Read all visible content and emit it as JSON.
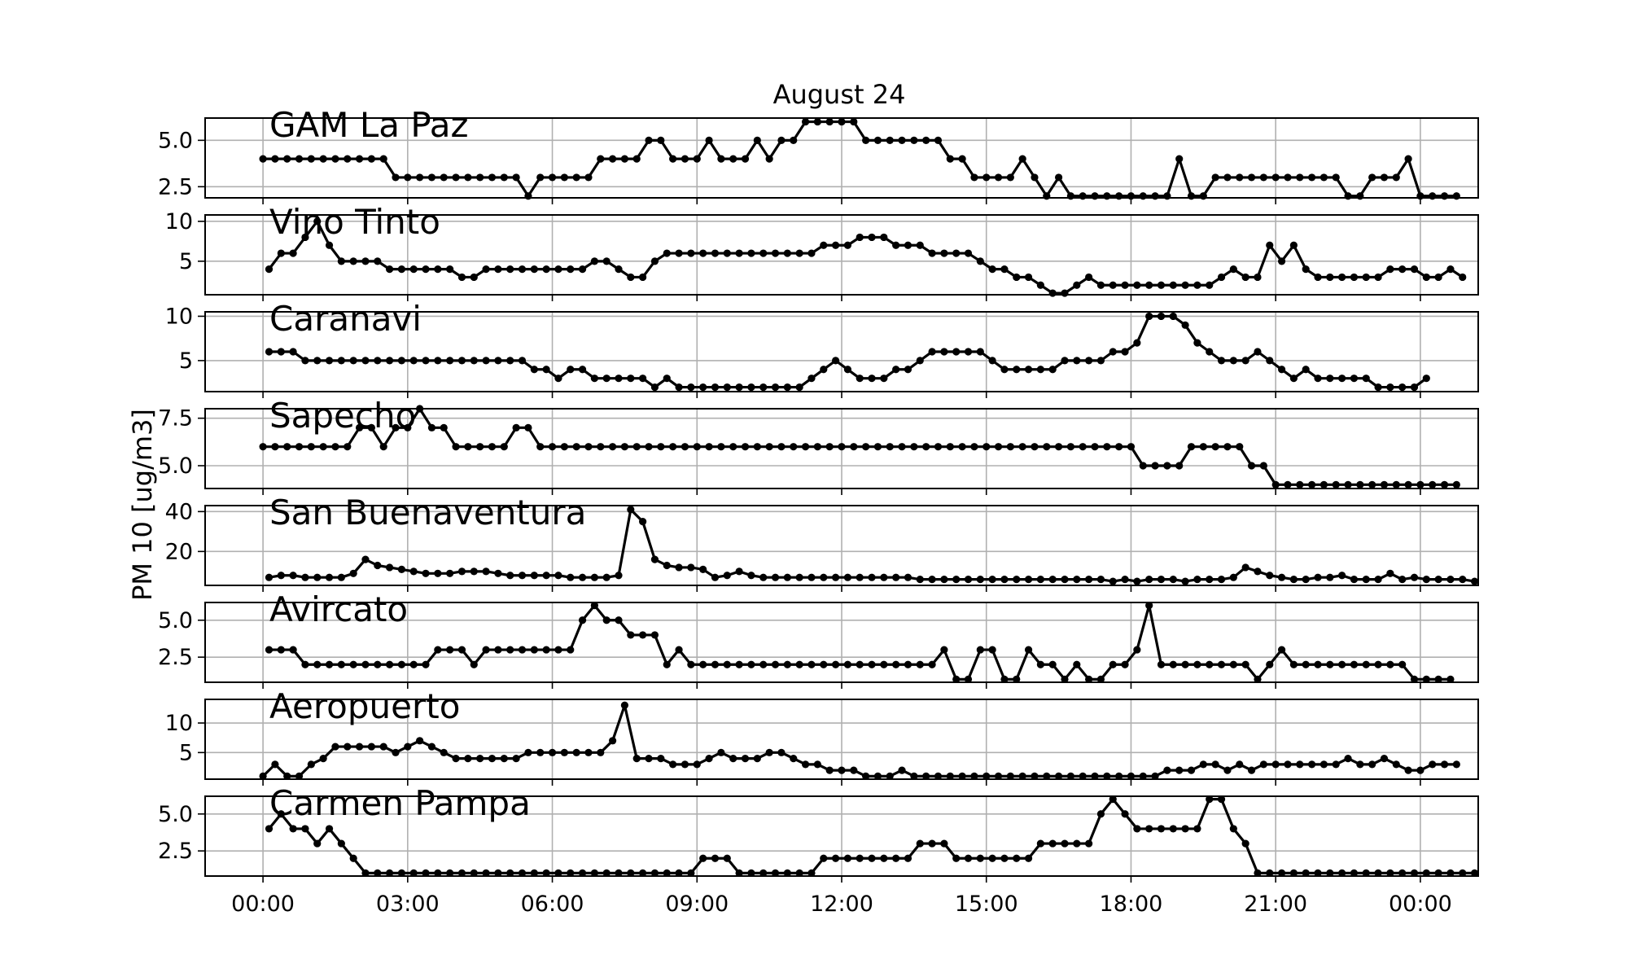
{
  "chart_data": {
    "type": "line",
    "title": "August 24",
    "ylabel": "PM 10 [ug/m3]",
    "xlabel": "",
    "grid": true,
    "x_tick_labels": [
      "00:00",
      "03:00",
      "06:00",
      "09:00",
      "12:00",
      "15:00",
      "18:00",
      "21:00",
      "00:00"
    ],
    "x_range_hours": [
      -1.2,
      25.2
    ],
    "sample_interval_hours": 0.25,
    "marker": "circle",
    "line_color": "#000000",
    "panels": [
      {
        "name": "GAM La Paz",
        "ylim": [
          1.9,
          6.2
        ],
        "y_ticks": [
          2.5,
          5.0
        ],
        "y_tick_labels": [
          "2.5",
          "5.0"
        ],
        "x_start": 0.0,
        "values": [
          4,
          4,
          4,
          4,
          4,
          4,
          4,
          4,
          4,
          4,
          4,
          3,
          3,
          3,
          3,
          3,
          3,
          3,
          3,
          3,
          3,
          3,
          2,
          3,
          3,
          3,
          3,
          3,
          4,
          4,
          4,
          4,
          5,
          5,
          4,
          4,
          4,
          5,
          4,
          4,
          4,
          5,
          4,
          5,
          5,
          6,
          6,
          6,
          6,
          6,
          5,
          5,
          5,
          5,
          5,
          5,
          5,
          4,
          4,
          3,
          3,
          3,
          3,
          4,
          3,
          2,
          3,
          2,
          2,
          2,
          2,
          2,
          2,
          2,
          2,
          2,
          4,
          2,
          2,
          3,
          3,
          3,
          3,
          3,
          3,
          3,
          3,
          3,
          3,
          3,
          2,
          2,
          3,
          3,
          3,
          4,
          2,
          2,
          2,
          2
        ]
      },
      {
        "name": "Vino Tinto",
        "ylim": [
          0.8,
          10.8
        ],
        "y_ticks": [
          5,
          10
        ],
        "y_tick_labels": [
          "5",
          "10"
        ],
        "x_start": 0.125,
        "values": [
          4,
          6,
          6,
          8,
          10,
          7,
          5,
          5,
          5,
          5,
          4,
          4,
          4,
          4,
          4,
          4,
          3,
          3,
          4,
          4,
          4,
          4,
          4,
          4,
          4,
          4,
          4,
          5,
          5,
          4,
          3,
          3,
          5,
          6,
          6,
          6,
          6,
          6,
          6,
          6,
          6,
          6,
          6,
          6,
          6,
          6,
          7,
          7,
          7,
          8,
          8,
          8,
          7,
          7,
          7,
          6,
          6,
          6,
          6,
          5,
          4,
          4,
          3,
          3,
          2,
          1,
          1,
          2,
          3,
          2,
          2,
          2,
          2,
          2,
          2,
          2,
          2,
          2,
          2,
          3,
          4,
          3,
          3,
          7,
          5,
          7,
          4,
          3,
          3,
          3,
          3,
          3,
          3,
          4,
          4,
          4,
          3,
          3,
          4,
          3
        ]
      },
      {
        "name": "Caranavi",
        "ylim": [
          1.5,
          10.5
        ],
        "y_ticks": [
          5,
          10
        ],
        "y_tick_labels": [
          "5",
          "10"
        ],
        "x_start": 0.125,
        "values": [
          6,
          6,
          6,
          5,
          5,
          5,
          5,
          5,
          5,
          5,
          5,
          5,
          5,
          5,
          5,
          5,
          5,
          5,
          5,
          5,
          5,
          5,
          4,
          4,
          3,
          4,
          4,
          3,
          3,
          3,
          3,
          3,
          2,
          3,
          2,
          2,
          2,
          2,
          2,
          2,
          2,
          2,
          2,
          2,
          2,
          3,
          4,
          5,
          4,
          3,
          3,
          3,
          4,
          4,
          5,
          6,
          6,
          6,
          6,
          6,
          5,
          4,
          4,
          4,
          4,
          4,
          5,
          5,
          5,
          5,
          6,
          6,
          7,
          10,
          10,
          10,
          9,
          7,
          6,
          5,
          5,
          5,
          6,
          5,
          4,
          3,
          4,
          3,
          3,
          3,
          3,
          3,
          2,
          2,
          2,
          2,
          3
        ]
      },
      {
        "name": "Sapecho",
        "ylim": [
          3.8,
          8.0
        ],
        "y_ticks": [
          5.0,
          7.5
        ],
        "y_tick_labels": [
          "5.0",
          "7.5"
        ],
        "x_start": 0.0,
        "values": [
          6,
          6,
          6,
          6,
          6,
          6,
          6,
          6,
          7,
          7,
          6,
          7,
          7,
          8,
          7,
          7,
          6,
          6,
          6,
          6,
          6,
          7,
          7,
          6,
          6,
          6,
          6,
          6,
          6,
          6,
          6,
          6,
          6,
          6,
          6,
          6,
          6,
          6,
          6,
          6,
          6,
          6,
          6,
          6,
          6,
          6,
          6,
          6,
          6,
          6,
          6,
          6,
          6,
          6,
          6,
          6,
          6,
          6,
          6,
          6,
          6,
          6,
          6,
          6,
          6,
          6,
          6,
          6,
          6,
          6,
          6,
          6,
          6,
          5,
          5,
          5,
          5,
          6,
          6,
          6,
          6,
          6,
          5,
          5,
          4,
          4,
          4,
          4,
          4,
          4,
          4,
          4,
          4,
          4,
          4,
          4,
          4,
          4,
          4,
          4
        ]
      },
      {
        "name": "San Buenaventura",
        "ylim": [
          3,
          43
        ],
        "y_ticks": [
          20,
          40
        ],
        "y_tick_labels": [
          "20",
          "40"
        ],
        "x_start": 0.125,
        "values": [
          7,
          8,
          8,
          7,
          7,
          7,
          7,
          9,
          16,
          13,
          12,
          11,
          10,
          9,
          9,
          9,
          10,
          10,
          10,
          9,
          8,
          8,
          8,
          8,
          8,
          7,
          7,
          7,
          7,
          8,
          41,
          35,
          16,
          13,
          12,
          12,
          11,
          7,
          8,
          10,
          8,
          7,
          7,
          7,
          7,
          7,
          7,
          7,
          7,
          7,
          7,
          7,
          7,
          7,
          6,
          6,
          6,
          6,
          6,
          6,
          6,
          6,
          6,
          6,
          6,
          6,
          6,
          6,
          6,
          6,
          5,
          6,
          5,
          6,
          6,
          6,
          5,
          6,
          6,
          6,
          7,
          12,
          10,
          8,
          7,
          6,
          6,
          7,
          7,
          8,
          6,
          6,
          6,
          9,
          6,
          7,
          6,
          6,
          6,
          6,
          5
        ]
      },
      {
        "name": "Avircato",
        "ylim": [
          0.8,
          6.2
        ],
        "y_ticks": [
          2.5,
          5.0
        ],
        "y_tick_labels": [
          "2.5",
          "5.0"
        ],
        "x_start": 0.125,
        "values": [
          3,
          3,
          3,
          2,
          2,
          2,
          2,
          2,
          2,
          2,
          2,
          2,
          2,
          2,
          3,
          3,
          3,
          2,
          3,
          3,
          3,
          3,
          3,
          3,
          3,
          3,
          5,
          6,
          5,
          5,
          4,
          4,
          4,
          2,
          3,
          2,
          2,
          2,
          2,
          2,
          2,
          2,
          2,
          2,
          2,
          2,
          2,
          2,
          2,
          2,
          2,
          2,
          2,
          2,
          2,
          2,
          3,
          1,
          1,
          3,
          3,
          1,
          1,
          3,
          2,
          2,
          1,
          2,
          1,
          1,
          2,
          2,
          3,
          6,
          2,
          2,
          2,
          2,
          2,
          2,
          2,
          2,
          1,
          2,
          3,
          2,
          2,
          2,
          2,
          2,
          2,
          2,
          2,
          2,
          2,
          1,
          1,
          1,
          1
        ]
      },
      {
        "name": "Aeropuerto",
        "ylim": [
          0.5,
          14.0
        ],
        "y_ticks": [
          5,
          10
        ],
        "y_tick_labels": [
          "5",
          "10"
        ],
        "x_start": 0.0,
        "values": [
          1,
          3,
          1,
          1,
          3,
          4,
          6,
          6,
          6,
          6,
          6,
          5,
          6,
          7,
          6,
          5,
          4,
          4,
          4,
          4,
          4,
          4,
          5,
          5,
          5,
          5,
          5,
          5,
          5,
          7,
          13,
          4,
          4,
          4,
          3,
          3,
          3,
          4,
          5,
          4,
          4,
          4,
          5,
          5,
          4,
          3,
          3,
          2,
          2,
          2,
          1,
          1,
          1,
          2,
          1,
          1,
          1,
          1,
          1,
          1,
          1,
          1,
          1,
          1,
          1,
          1,
          1,
          1,
          1,
          1,
          1,
          1,
          1,
          1,
          1,
          2,
          2,
          2,
          3,
          3,
          2,
          3,
          2,
          3,
          3,
          3,
          3,
          3,
          3,
          3,
          4,
          3,
          3,
          4,
          3,
          2,
          2,
          3,
          3,
          3
        ]
      },
      {
        "name": "Carmen Pampa",
        "ylim": [
          0.8,
          6.2
        ],
        "y_ticks": [
          2.5,
          5.0
        ],
        "y_tick_labels": [
          "2.5",
          "5.0"
        ],
        "x_start": 0.125,
        "values": [
          4,
          5,
          4,
          4,
          3,
          4,
          3,
          2,
          1,
          1,
          1,
          1,
          1,
          1,
          1,
          1,
          1,
          1,
          1,
          1,
          1,
          1,
          1,
          1,
          1,
          1,
          1,
          1,
          1,
          1,
          1,
          1,
          1,
          1,
          1,
          1,
          2,
          2,
          2,
          1,
          1,
          1,
          1,
          1,
          1,
          1,
          2,
          2,
          2,
          2,
          2,
          2,
          2,
          2,
          3,
          3,
          3,
          2,
          2,
          2,
          2,
          2,
          2,
          2,
          3,
          3,
          3,
          3,
          3,
          5,
          6,
          5,
          4,
          4,
          4,
          4,
          4,
          4,
          6,
          6,
          4,
          3,
          1,
          1,
          1,
          1,
          1,
          1,
          1,
          1,
          1,
          1,
          1,
          1,
          1,
          1,
          1,
          1,
          1,
          1,
          1
        ]
      }
    ]
  }
}
